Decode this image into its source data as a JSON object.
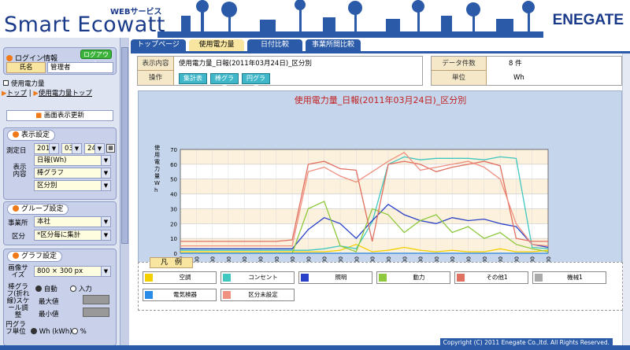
{
  "header": {
    "service_label": "WEBサービス",
    "logo": "Smart Ecowatt",
    "brand": "ENEGATE"
  },
  "sidebar": {
    "login_title": "ログイン情報",
    "logout_label": "ログアウト",
    "name_label": "氏名",
    "name_value": "管理者",
    "section_heading": "使用電力量",
    "breadcrumb_top": "トップ",
    "breadcrumb_sep": "|",
    "breadcrumb_usage": "使用電力量トップ",
    "refresh_label": "画面表示更新",
    "display_title": "表示設定",
    "date_label": "測定日",
    "year": "2011",
    "month": "03",
    "day": "24",
    "content_label": "表示内容",
    "content_opt1": "日報(Wh)",
    "content_opt2": "棒グラフ",
    "content_opt3": "区分別",
    "group_title": "グループ設定",
    "site_label": "事業所",
    "site_value": "本社",
    "div_label": "区分",
    "div_value": "*区分毎に集計",
    "graph_title": "グラフ設定",
    "size_label": "画像サイズ",
    "size_value": "800 × 300 px",
    "scale_label": "棒グラフ(折れ線)スケール調整",
    "auto_label": "自動",
    "input_label": "入力",
    "max_label": "最大値",
    "min_label": "最小値",
    "pie_label": "円グラフ単位",
    "pie_opt1": "Wh (kWh)",
    "pie_opt2": "%"
  },
  "tabs": [
    "トップページ",
    "使用電力量",
    "日付比較",
    "事業所間比較"
  ],
  "info": {
    "display_label": "表示内容",
    "display_value": "使用電力量_日報(2011年03月24日)_区分別",
    "op_label": "操作",
    "op_buttons": [
      "集計表",
      "棒グラフ",
      "円グラフ"
    ],
    "count_label": "データ件数",
    "count_value": "8 件",
    "unit_label": "単位",
    "unit_value": "Wh"
  },
  "chart_data": {
    "type": "line",
    "title": "使用電力量_日報(2011年03月24日)_区分別",
    "ylabel": "使用電力量 Wh",
    "xlabel": "時間",
    "ylim": [
      0,
      70
    ],
    "yticks": [
      0,
      10,
      20,
      30,
      40,
      50,
      60,
      70
    ],
    "categories": [
      "0:00",
      "1:00",
      "2:00",
      "3:00",
      "4:00",
      "5:00",
      "6:00",
      "7:00",
      "8:00",
      "9:00",
      "10:00",
      "11:00",
      "12:00",
      "13:00",
      "14:00",
      "15:00",
      "16:00",
      "17:00",
      "18:00",
      "19:00",
      "20:00",
      "21:00",
      "22:00",
      "23:00"
    ],
    "series": [
      {
        "name": "空調",
        "color": "#f4d000",
        "values": [
          1,
          1,
          1,
          1,
          1,
          1,
          1,
          1,
          1,
          1,
          2,
          6,
          1,
          2,
          4,
          2,
          1,
          2,
          1,
          1,
          3,
          1,
          1,
          2
        ]
      },
      {
        "name": "コンセント",
        "color": "#3fc7c0",
        "values": [
          2,
          2,
          2,
          2,
          2,
          2,
          2,
          2,
          2,
          3,
          5,
          3,
          21,
          60,
          65,
          63,
          64,
          64,
          64,
          63,
          65,
          64,
          4,
          3
        ]
      },
      {
        "name": "照明",
        "color": "#2840c8",
        "values": [
          3,
          3,
          3,
          3,
          3,
          3,
          3,
          3,
          16,
          24,
          20,
          10,
          22,
          33,
          26,
          22,
          20,
          24,
          22,
          23,
          20,
          18,
          6,
          4
        ]
      },
      {
        "name": "動力",
        "color": "#8ec83c",
        "values": [
          0,
          0,
          0,
          0,
          0,
          0,
          0,
          0,
          30,
          35,
          5,
          1,
          30,
          26,
          14,
          22,
          26,
          14,
          18,
          10,
          14,
          6,
          3,
          1
        ]
      },
      {
        "name": "その他1",
        "color": "#e07060",
        "values": [
          8,
          8,
          8,
          8,
          8,
          8,
          8,
          9,
          60,
          62,
          57,
          56,
          8,
          60,
          62,
          60,
          55,
          58,
          60,
          62,
          59,
          10,
          8,
          8
        ]
      },
      {
        "name": "機械1",
        "color": "#aaaaaa",
        "values": [
          0,
          0,
          0,
          0,
          0,
          0,
          0,
          0,
          0,
          0,
          0,
          0,
          0,
          0,
          0,
          0,
          0,
          0,
          0,
          0,
          0,
          0,
          0,
          0
        ]
      },
      {
        "name": "電気検器",
        "color": "#2a8ae8",
        "values": [
          0,
          0,
          0,
          0,
          0,
          0,
          0,
          0,
          0,
          0,
          0,
          0,
          0,
          0,
          0,
          0,
          0,
          0,
          0,
          0,
          0,
          0,
          0,
          0
        ]
      },
      {
        "name": "区分未設定",
        "color": "#f09080",
        "values": [
          5,
          5,
          5,
          5,
          5,
          5,
          5,
          5,
          55,
          58,
          52,
          48,
          55,
          62,
          68,
          56,
          58,
          60,
          62,
          58,
          50,
          20,
          6,
          5
        ]
      }
    ]
  },
  "footer": "Copyright (C) 2011 Enegate Co.,ltd. All Rights Reserved."
}
